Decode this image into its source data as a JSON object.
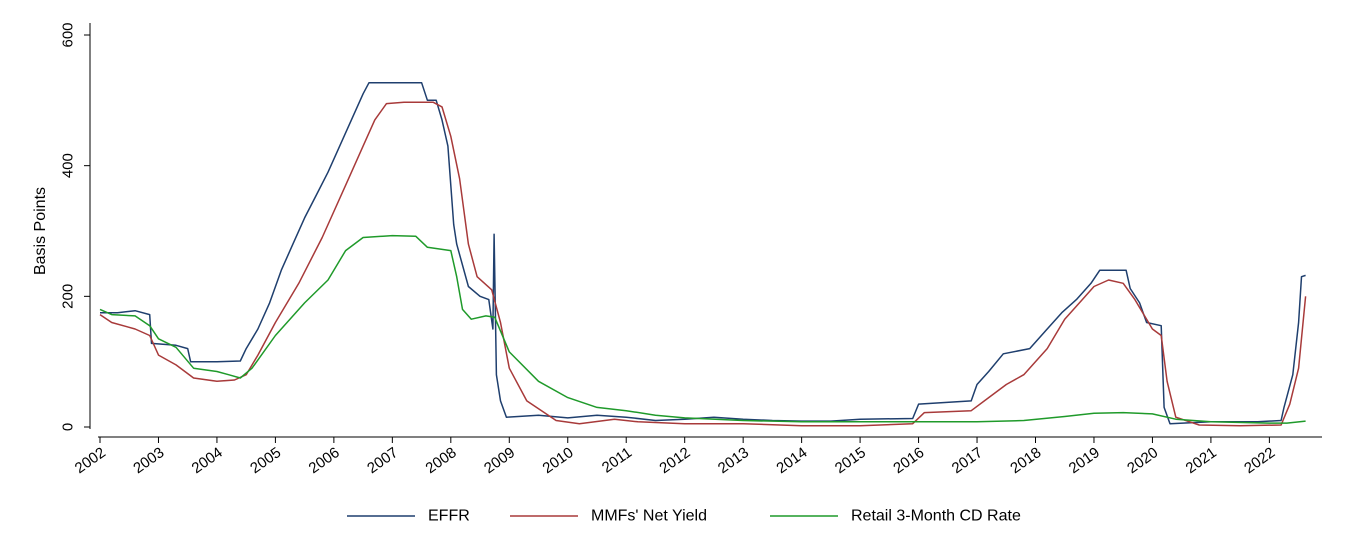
{
  "chart_data": {
    "type": "line",
    "title": "",
    "xlabel": "",
    "ylabel": "Basis Points",
    "xlim": [
      2002,
      2022.9
    ],
    "ylim": [
      0,
      600
    ],
    "yticks": [
      0,
      200,
      400,
      600
    ],
    "xticks": [
      2002,
      2003,
      2004,
      2005,
      2006,
      2007,
      2008,
      2009,
      2010,
      2011,
      2012,
      2013,
      2014,
      2015,
      2016,
      2017,
      2018,
      2019,
      2020,
      2021,
      2022
    ],
    "xtick_labels": [
      "2002",
      "2003",
      "2004",
      "2005",
      "2006",
      "2007",
      "2008",
      "2009",
      "2010",
      "2011",
      "2012",
      "2013",
      "2014",
      "2015",
      "2016",
      "2017",
      "2018",
      "2019",
      "2020",
      "2021",
      "2022"
    ],
    "grid": false,
    "legend_position": "bottom",
    "series": [
      {
        "name": "EFFR",
        "color": "#1f3f6e",
        "points": [
          [
            2002.0,
            175
          ],
          [
            2002.3,
            175
          ],
          [
            2002.6,
            178
          ],
          [
            2002.85,
            172
          ],
          [
            2002.88,
            128
          ],
          [
            2003.3,
            125
          ],
          [
            2003.5,
            120
          ],
          [
            2003.55,
            100
          ],
          [
            2003.9,
            100
          ],
          [
            2004.0,
            100
          ],
          [
            2004.4,
            101
          ],
          [
            2004.5,
            120
          ],
          [
            2004.7,
            150
          ],
          [
            2004.9,
            190
          ],
          [
            2005.1,
            240
          ],
          [
            2005.3,
            280
          ],
          [
            2005.5,
            320
          ],
          [
            2005.7,
            355
          ],
          [
            2005.9,
            390
          ],
          [
            2006.1,
            430
          ],
          [
            2006.3,
            470
          ],
          [
            2006.5,
            510
          ],
          [
            2006.6,
            527
          ],
          [
            2007.0,
            527
          ],
          [
            2007.5,
            527
          ],
          [
            2007.6,
            500
          ],
          [
            2007.75,
            500
          ],
          [
            2007.85,
            470
          ],
          [
            2007.95,
            430
          ],
          [
            2008.05,
            310
          ],
          [
            2008.1,
            280
          ],
          [
            2008.3,
            215
          ],
          [
            2008.5,
            200
          ],
          [
            2008.65,
            195
          ],
          [
            2008.72,
            150
          ],
          [
            2008.74,
            295
          ],
          [
            2008.78,
            80
          ],
          [
            2008.85,
            40
          ],
          [
            2008.95,
            15
          ],
          [
            2009.5,
            18
          ],
          [
            2010.0,
            14
          ],
          [
            2010.5,
            18
          ],
          [
            2011.0,
            15
          ],
          [
            2011.5,
            10
          ],
          [
            2012.0,
            12
          ],
          [
            2012.5,
            15
          ],
          [
            2013.0,
            12
          ],
          [
            2013.5,
            10
          ],
          [
            2014.0,
            9
          ],
          [
            2014.5,
            9
          ],
          [
            2015.0,
            12
          ],
          [
            2015.9,
            13
          ],
          [
            2016.0,
            35
          ],
          [
            2016.9,
            40
          ],
          [
            2017.0,
            65
          ],
          [
            2017.2,
            85
          ],
          [
            2017.45,
            112
          ],
          [
            2017.9,
            120
          ],
          [
            2018.2,
            150
          ],
          [
            2018.45,
            175
          ],
          [
            2018.7,
            195
          ],
          [
            2018.95,
            220
          ],
          [
            2019.1,
            240
          ],
          [
            2019.55,
            240
          ],
          [
            2019.62,
            212
          ],
          [
            2019.78,
            190
          ],
          [
            2019.9,
            160
          ],
          [
            2020.15,
            155
          ],
          [
            2020.2,
            30
          ],
          [
            2020.3,
            5
          ],
          [
            2021.0,
            8
          ],
          [
            2021.8,
            8
          ],
          [
            2022.2,
            10
          ],
          [
            2022.25,
            30
          ],
          [
            2022.4,
            80
          ],
          [
            2022.45,
            120
          ],
          [
            2022.5,
            160
          ],
          [
            2022.55,
            230
          ],
          [
            2022.62,
            232
          ]
        ]
      },
      {
        "name": "MMFs' Net Yield",
        "color": "#a83a3a",
        "points": [
          [
            2002.0,
            172
          ],
          [
            2002.2,
            160
          ],
          [
            2002.6,
            150
          ],
          [
            2002.85,
            140
          ],
          [
            2003.0,
            110
          ],
          [
            2003.3,
            95
          ],
          [
            2003.6,
            75
          ],
          [
            2004.0,
            70
          ],
          [
            2004.3,
            72
          ],
          [
            2004.5,
            80
          ],
          [
            2004.7,
            110
          ],
          [
            2005.0,
            160
          ],
          [
            2005.4,
            220
          ],
          [
            2005.8,
            290
          ],
          [
            2006.2,
            370
          ],
          [
            2006.5,
            430
          ],
          [
            2006.7,
            470
          ],
          [
            2006.9,
            495
          ],
          [
            2007.2,
            497
          ],
          [
            2007.7,
            497
          ],
          [
            2007.85,
            490
          ],
          [
            2008.0,
            445
          ],
          [
            2008.15,
            380
          ],
          [
            2008.3,
            280
          ],
          [
            2008.45,
            230
          ],
          [
            2008.7,
            210
          ],
          [
            2008.85,
            160
          ],
          [
            2009.0,
            90
          ],
          [
            2009.3,
            40
          ],
          [
            2009.8,
            10
          ],
          [
            2010.2,
            5
          ],
          [
            2010.8,
            12
          ],
          [
            2011.2,
            8
          ],
          [
            2012.0,
            5
          ],
          [
            2013.0,
            5
          ],
          [
            2014.0,
            2
          ],
          [
            2015.0,
            2
          ],
          [
            2015.9,
            5
          ],
          [
            2016.1,
            22
          ],
          [
            2016.9,
            25
          ],
          [
            2017.2,
            45
          ],
          [
            2017.5,
            65
          ],
          [
            2017.8,
            80
          ],
          [
            2018.2,
            120
          ],
          [
            2018.5,
            165
          ],
          [
            2018.8,
            195
          ],
          [
            2019.0,
            215
          ],
          [
            2019.25,
            225
          ],
          [
            2019.5,
            220
          ],
          [
            2019.7,
            195
          ],
          [
            2020.0,
            150
          ],
          [
            2020.15,
            140
          ],
          [
            2020.25,
            70
          ],
          [
            2020.4,
            15
          ],
          [
            2020.8,
            3
          ],
          [
            2021.5,
            2
          ],
          [
            2022.2,
            3
          ],
          [
            2022.35,
            35
          ],
          [
            2022.5,
            90
          ],
          [
            2022.62,
            200
          ]
        ]
      },
      {
        "name": "Retail 3-Month CD Rate",
        "color": "#1f9a2a",
        "points": [
          [
            2002.0,
            180
          ],
          [
            2002.2,
            172
          ],
          [
            2002.6,
            170
          ],
          [
            2002.85,
            155
          ],
          [
            2003.0,
            135
          ],
          [
            2003.3,
            122
          ],
          [
            2003.6,
            90
          ],
          [
            2004.0,
            85
          ],
          [
            2004.2,
            80
          ],
          [
            2004.4,
            75
          ],
          [
            2004.6,
            90
          ],
          [
            2005.0,
            140
          ],
          [
            2005.5,
            190
          ],
          [
            2005.9,
            225
          ],
          [
            2006.2,
            270
          ],
          [
            2006.5,
            290
          ],
          [
            2007.0,
            293
          ],
          [
            2007.4,
            292
          ],
          [
            2007.6,
            275
          ],
          [
            2008.0,
            270
          ],
          [
            2008.1,
            230
          ],
          [
            2008.2,
            180
          ],
          [
            2008.35,
            165
          ],
          [
            2008.6,
            170
          ],
          [
            2008.75,
            168
          ],
          [
            2009.0,
            115
          ],
          [
            2009.5,
            70
          ],
          [
            2010.0,
            45
          ],
          [
            2010.5,
            30
          ],
          [
            2011.0,
            25
          ],
          [
            2011.5,
            18
          ],
          [
            2012.0,
            14
          ],
          [
            2013.0,
            10
          ],
          [
            2014.0,
            8
          ],
          [
            2015.0,
            8
          ],
          [
            2016.0,
            8
          ],
          [
            2017.0,
            8
          ],
          [
            2017.8,
            10
          ],
          [
            2018.5,
            16
          ],
          [
            2019.0,
            21
          ],
          [
            2019.5,
            22
          ],
          [
            2020.0,
            20
          ],
          [
            2020.4,
            12
          ],
          [
            2021.0,
            8
          ],
          [
            2022.0,
            6
          ],
          [
            2022.3,
            6
          ],
          [
            2022.62,
            9
          ]
        ]
      }
    ]
  }
}
